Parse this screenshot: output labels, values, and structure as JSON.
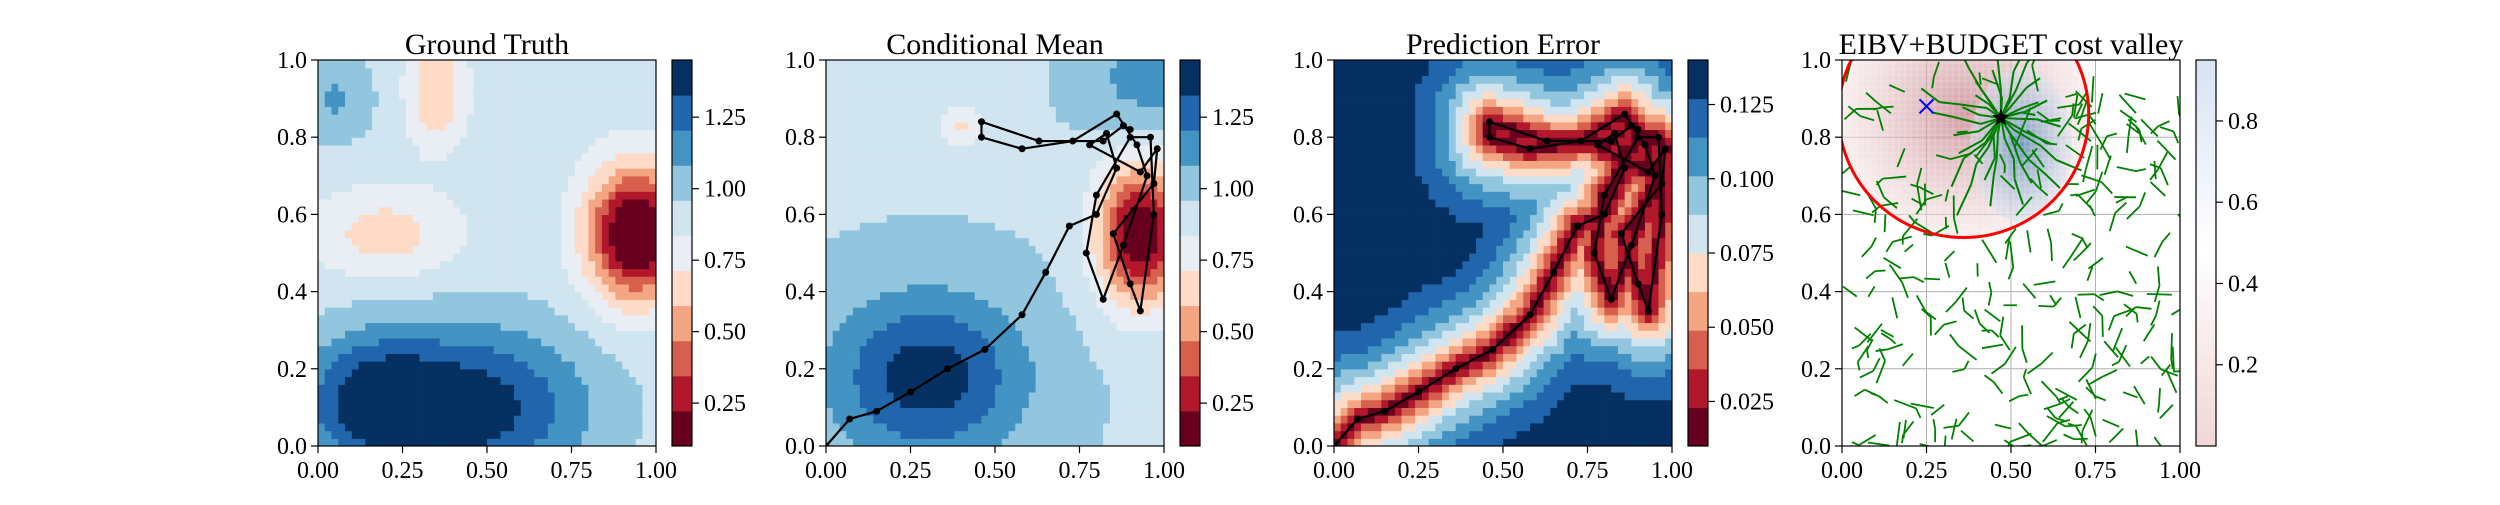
{
  "chart_data": [
    {
      "type": "heatmap",
      "title": "Ground Truth",
      "xlim": [
        0,
        1
      ],
      "ylim": [
        0,
        1
      ],
      "xticks": [
        "0.00",
        "0.25",
        "0.50",
        "0.75",
        "1.00"
      ],
      "yticks": [
        "0.0",
        "0.2",
        "0.4",
        "0.6",
        "0.8",
        "1.0"
      ],
      "colormap": "RdBu (reversed: low=dark red, high=dark blue)",
      "colorbar": {
        "range": [
          0.1,
          1.45
        ],
        "ticks": [
          "0.25",
          "0.50",
          "0.75",
          "1.00",
          "1.25"
        ]
      },
      "field": {
        "base": 0.9,
        "features": [
          {
            "x": 0.94,
            "y": 0.55,
            "sx": 0.1,
            "sy": 0.12,
            "amp": -0.9,
            "kind": "low"
          },
          {
            "x": 0.35,
            "y": 0.92,
            "sx": 0.06,
            "sy": 0.1,
            "amp": -0.3,
            "kind": "low"
          },
          {
            "x": 0.2,
            "y": 0.55,
            "sx": 0.15,
            "sy": 0.08,
            "amp": -0.25,
            "kind": "low"
          },
          {
            "x": 0.45,
            "y": 0.1,
            "sx": 0.25,
            "sy": 0.15,
            "amp": 0.5,
            "kind": "high"
          },
          {
            "x": 0.15,
            "y": 0.12,
            "sx": 0.15,
            "sy": 0.12,
            "amp": 0.35,
            "kind": "high"
          },
          {
            "x": 0.05,
            "y": 0.9,
            "sx": 0.08,
            "sy": 0.08,
            "amp": 0.2,
            "kind": "high"
          }
        ]
      }
    },
    {
      "type": "heatmap",
      "title": "Conditional Mean",
      "xlim": [
        0,
        1
      ],
      "ylim": [
        0,
        1
      ],
      "xticks": [
        "0.00",
        "0.25",
        "0.50",
        "0.75",
        "1.00"
      ],
      "yticks": [
        "0.0",
        "0.2",
        "0.4",
        "0.6",
        "0.8",
        "1.0"
      ],
      "colormap": "RdBu (reversed: low=dark red, high=dark blue)",
      "colorbar": {
        "range": [
          0.1,
          1.45
        ],
        "ticks": [
          "0.25",
          "0.50",
          "0.75",
          "1.00",
          "1.25"
        ]
      },
      "field": {
        "base": 0.95,
        "features": [
          {
            "x": 0.93,
            "y": 0.55,
            "sx": 0.09,
            "sy": 0.13,
            "amp": -0.85,
            "kind": "low"
          },
          {
            "x": 0.4,
            "y": 0.83,
            "sx": 0.05,
            "sy": 0.04,
            "amp": -0.25,
            "kind": "low"
          },
          {
            "x": 0.3,
            "y": 0.18,
            "sx": 0.2,
            "sy": 0.15,
            "amp": 0.45,
            "kind": "high"
          },
          {
            "x": 0.95,
            "y": 0.95,
            "sx": 0.12,
            "sy": 0.1,
            "amp": 0.2,
            "kind": "high"
          }
        ]
      },
      "path": [
        [
          0.0,
          0.0
        ],
        [
          0.07,
          0.07
        ],
        [
          0.15,
          0.09
        ],
        [
          0.25,
          0.14
        ],
        [
          0.36,
          0.2
        ],
        [
          0.47,
          0.25
        ],
        [
          0.58,
          0.34
        ],
        [
          0.65,
          0.45
        ],
        [
          0.72,
          0.57
        ],
        [
          0.8,
          0.6
        ],
        [
          0.86,
          0.72
        ],
        [
          0.83,
          0.81
        ],
        [
          0.78,
          0.78
        ],
        [
          0.93,
          0.71
        ],
        [
          0.98,
          0.77
        ],
        [
          0.97,
          0.68
        ],
        [
          0.85,
          0.55
        ],
        [
          0.9,
          0.42
        ],
        [
          0.93,
          0.35
        ],
        [
          0.97,
          0.6
        ],
        [
          0.96,
          0.8
        ],
        [
          0.9,
          0.8
        ],
        [
          0.8,
          0.65
        ],
        [
          0.77,
          0.5
        ],
        [
          0.82,
          0.38
        ],
        [
          0.88,
          0.52
        ],
        [
          0.95,
          0.7
        ],
        [
          0.92,
          0.78
        ],
        [
          0.86,
          0.86
        ],
        [
          0.73,
          0.79
        ],
        [
          0.58,
          0.77
        ],
        [
          0.46,
          0.8
        ],
        [
          0.46,
          0.84
        ],
        [
          0.63,
          0.79
        ],
        [
          0.82,
          0.79
        ],
        [
          0.88,
          0.83
        ],
        [
          0.9,
          0.82
        ]
      ]
    },
    {
      "type": "heatmap",
      "title": "Prediction Error",
      "xlim": [
        0,
        1
      ],
      "ylim": [
        0,
        1
      ],
      "xticks": [
        "0.00",
        "0.25",
        "0.50",
        "0.75",
        "1.00"
      ],
      "yticks": [
        "0.0",
        "0.2",
        "0.4",
        "0.6",
        "0.8",
        "1.0"
      ],
      "colormap": "RdBu (reversed: low=dark red, high=dark blue)",
      "colorbar": {
        "range": [
          0.01,
          0.14
        ],
        "ticks": [
          "0.025",
          "0.050",
          "0.075",
          "0.100",
          "0.125"
        ]
      },
      "path": [
        [
          0.0,
          0.0
        ],
        [
          0.07,
          0.07
        ],
        [
          0.15,
          0.09
        ],
        [
          0.25,
          0.14
        ],
        [
          0.36,
          0.2
        ],
        [
          0.47,
          0.25
        ],
        [
          0.58,
          0.34
        ],
        [
          0.65,
          0.45
        ],
        [
          0.72,
          0.57
        ],
        [
          0.8,
          0.6
        ],
        [
          0.86,
          0.72
        ],
        [
          0.83,
          0.81
        ],
        [
          0.78,
          0.78
        ],
        [
          0.93,
          0.71
        ],
        [
          0.98,
          0.77
        ],
        [
          0.97,
          0.68
        ],
        [
          0.85,
          0.55
        ],
        [
          0.9,
          0.42
        ],
        [
          0.93,
          0.35
        ],
        [
          0.97,
          0.6
        ],
        [
          0.96,
          0.8
        ],
        [
          0.9,
          0.8
        ],
        [
          0.8,
          0.65
        ],
        [
          0.77,
          0.5
        ],
        [
          0.82,
          0.38
        ],
        [
          0.88,
          0.52
        ],
        [
          0.95,
          0.7
        ],
        [
          0.92,
          0.78
        ],
        [
          0.86,
          0.86
        ],
        [
          0.73,
          0.79
        ],
        [
          0.58,
          0.77
        ],
        [
          0.46,
          0.8
        ],
        [
          0.46,
          0.84
        ],
        [
          0.63,
          0.79
        ],
        [
          0.82,
          0.79
        ],
        [
          0.88,
          0.83
        ],
        [
          0.9,
          0.82
        ]
      ]
    },
    {
      "type": "heatmap",
      "title": "EIBV+BUDGET cost valley",
      "xlim": [
        0,
        1
      ],
      "ylim": [
        0,
        1
      ],
      "xticks": [
        "0.00",
        "0.25",
        "0.50",
        "0.75",
        "1.00"
      ],
      "yticks": [
        "0.0",
        "0.2",
        "0.4",
        "0.6",
        "0.8",
        "1.0"
      ],
      "grid": true,
      "colormap": "RdBu (reversed)",
      "colorbar": {
        "range": [
          0.0,
          0.95
        ],
        "ticks": [
          "0.2",
          "0.4",
          "0.6",
          "0.8"
        ]
      },
      "current_location": [
        0.47,
        0.85
      ],
      "previous_location": [
        0.25,
        0.88
      ],
      "budget_ellipse": {
        "center": [
          0.36,
          0.86
        ],
        "rx": 0.37,
        "ry": 0.32
      },
      "tree_color": "#008000",
      "boundary_color": "#ff0000"
    }
  ]
}
